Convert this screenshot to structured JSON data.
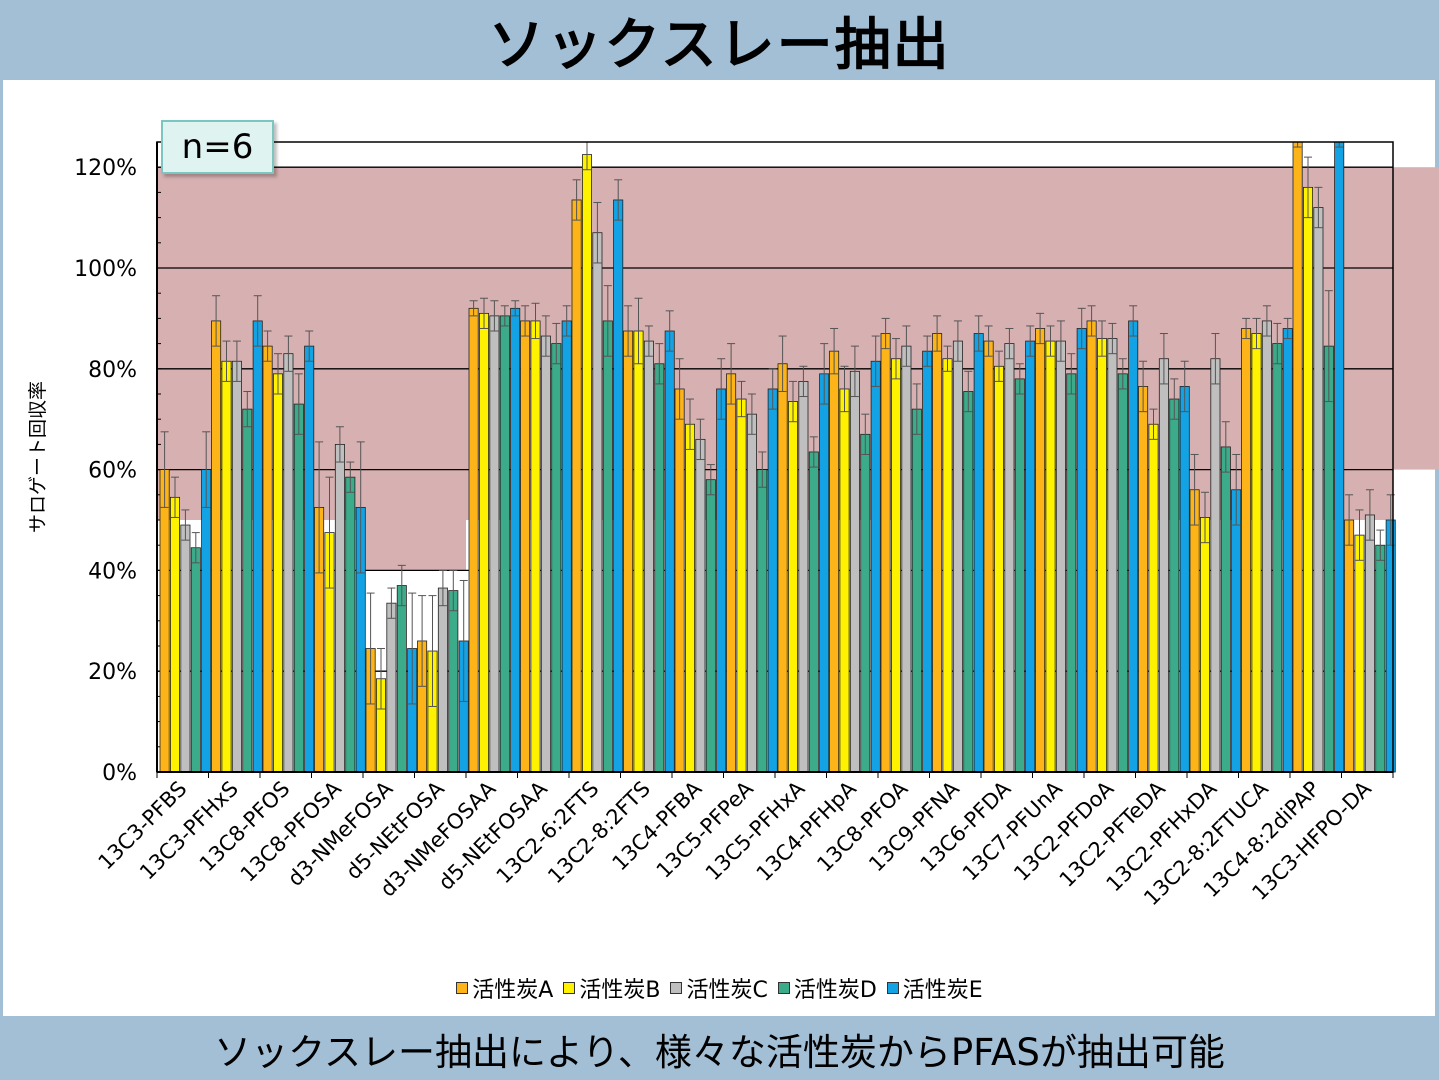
{
  "title": "ソックスレー抽出",
  "footer": "ソックスレー抽出により、様々な活性炭からPFASが抽出可能",
  "badge": "n=6",
  "colors": {
    "series": [
      "#fcb419",
      "#fef200",
      "#bfbfbf",
      "#3cab8a",
      "#13a3e5"
    ],
    "band": "#d7b0b1",
    "axis": "#000000"
  },
  "chart_data": {
    "type": "bar",
    "ylabel": "サロゲート回収率",
    "ylim": [
      0,
      1.25
    ],
    "yticks": [
      0,
      0.2,
      0.4,
      0.6,
      0.8,
      1.0,
      1.2
    ],
    "ytick_labels": [
      "0%",
      "20%",
      "40%",
      "60%",
      "80%",
      "100%",
      "120%"
    ],
    "grid": true,
    "legend_position": "bottom",
    "acceptance_bands": [
      {
        "category_range": [
          0,
          3
        ],
        "range": [
          0.5,
          1.2
        ]
      },
      {
        "category_range": [
          4,
          5
        ],
        "range": [
          0.4,
          1.2
        ]
      },
      {
        "category_range": [
          6,
          23
        ],
        "range": [
          0.5,
          1.2
        ]
      },
      {
        "category_range": [
          24,
          24
        ],
        "range": [
          0.6,
          1.2
        ]
      }
    ],
    "categories": [
      "13C3-PFBS",
      "13C3-PFHxS",
      "13C8-PFOS",
      "13C8-PFOSA",
      "d3-NMeFOSA",
      "d5-NEtFOSA",
      "d3-NMeFOSAA",
      "d5-NEtFOSAA",
      "13C2-6:2FTS",
      "13C2-8:2FTS",
      "13C4-PFBA",
      "13C5-PFPeA",
      "13C5-PFHxA",
      "13C4-PFHpA",
      "13C8-PFOA",
      "13C9-PFNA",
      "13C6-PFDA",
      "13C7-PFUnA",
      "13C2-PFDoA",
      "13C2-PFTeDA",
      "13C2-PFHxDA",
      "13C2-8:2FTUCA",
      "13C4-8:2diPAP",
      "13C3-HFPO-DA"
    ],
    "series": [
      {
        "name": "活性炭A",
        "values": [
          0.6,
          0.895,
          0.845,
          0.525,
          0.245,
          0.26,
          0.92,
          0.895,
          1.135,
          0.875,
          0.76,
          0.79,
          0.81,
          0.835,
          0.87,
          0.87,
          0.855,
          0.88,
          0.895,
          0.765,
          0.56,
          0.88,
          1.27,
          0.5
        ],
        "errors": [
          0.075,
          0.05,
          0.03,
          0.13,
          0.11,
          0.09,
          0.015,
          0.03,
          0.04,
          0.05,
          0.06,
          0.06,
          0.055,
          0.045,
          0.03,
          0.035,
          0.03,
          0.03,
          0.03,
          0.05,
          0.07,
          0.02,
          0.03,
          0.05
        ]
      },
      {
        "name": "活性炭B",
        "values": [
          0.545,
          0.815,
          0.79,
          0.475,
          0.185,
          0.24,
          0.91,
          0.895,
          1.225,
          0.875,
          0.69,
          0.74,
          0.735,
          0.76,
          0.82,
          0.82,
          0.805,
          0.855,
          0.86,
          0.69,
          0.505,
          0.87,
          1.16,
          0.47
        ],
        "errors": [
          0.04,
          0.04,
          0.04,
          0.11,
          0.06,
          0.11,
          0.03,
          0.035,
          0.03,
          0.065,
          0.05,
          0.035,
          0.04,
          0.045,
          0.04,
          0.025,
          0.03,
          0.03,
          0.035,
          0.03,
          0.05,
          0.03,
          0.06,
          0.05
        ]
      },
      {
        "name": "活性炭C",
        "values": [
          0.49,
          0.815,
          0.83,
          0.65,
          0.335,
          0.365,
          0.905,
          0.865,
          1.07,
          0.855,
          0.66,
          0.71,
          0.775,
          0.795,
          0.845,
          0.855,
          0.85,
          0.855,
          0.86,
          0.82,
          0.82,
          0.895,
          1.12,
          0.51
        ],
        "errors": [
          0.03,
          0.04,
          0.035,
          0.035,
          0.03,
          0.035,
          0.03,
          0.04,
          0.06,
          0.03,
          0.04,
          0.04,
          0.03,
          0.05,
          0.04,
          0.04,
          0.03,
          0.04,
          0.03,
          0.05,
          0.05,
          0.03,
          0.04,
          0.05
        ]
      },
      {
        "name": "活性炭D",
        "values": [
          0.445,
          0.72,
          0.73,
          0.585,
          0.37,
          0.36,
          0.905,
          0.85,
          0.895,
          0.81,
          0.58,
          0.6,
          0.635,
          0.67,
          0.72,
          0.755,
          0.78,
          0.79,
          0.79,
          0.74,
          0.645,
          0.85,
          0.845,
          0.45
        ],
        "errors": [
          0.03,
          0.035,
          0.06,
          0.03,
          0.04,
          0.04,
          0.02,
          0.04,
          0.07,
          0.04,
          0.03,
          0.035,
          0.03,
          0.04,
          0.05,
          0.04,
          0.03,
          0.04,
          0.03,
          0.04,
          0.05,
          0.04,
          0.11,
          0.03
        ]
      },
      {
        "name": "活性炭E",
        "values": [
          0.6,
          0.895,
          0.845,
          0.525,
          0.245,
          0.26,
          0.92,
          0.895,
          1.135,
          0.875,
          0.76,
          0.76,
          0.79,
          0.815,
          0.835,
          0.87,
          0.855,
          0.88,
          0.895,
          0.765,
          0.56,
          0.88,
          1.27,
          0.5
        ],
        "errors": [
          0.075,
          0.05,
          0.03,
          0.13,
          0.11,
          0.12,
          0.015,
          0.03,
          0.04,
          0.04,
          0.06,
          0.04,
          0.06,
          0.05,
          0.03,
          0.035,
          0.03,
          0.04,
          0.03,
          0.05,
          0.07,
          0.02,
          0.03,
          0.05
        ]
      }
    ]
  }
}
